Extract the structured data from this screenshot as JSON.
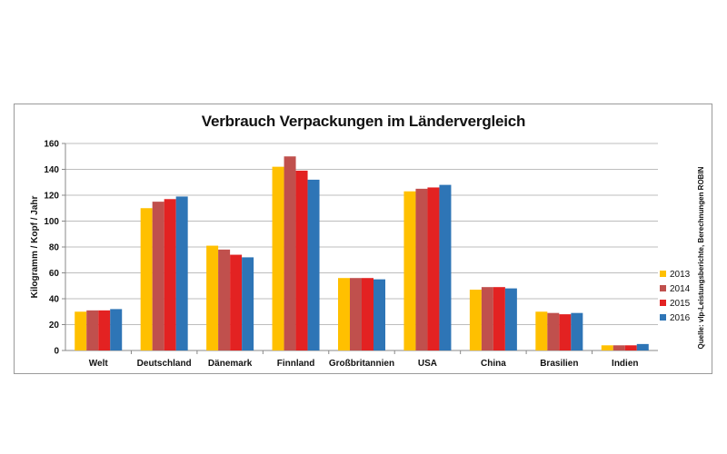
{
  "chart_data": {
    "type": "bar",
    "title": "Verbrauch Verpackungen im Ländervergleich",
    "ylabel": "Kilogramm / Kopf / Jahr",
    "xlabel": "",
    "ylim": [
      0,
      160
    ],
    "yticks": [
      0,
      20,
      40,
      60,
      80,
      100,
      120,
      140,
      160
    ],
    "grid": true,
    "legend_position": "right",
    "source": "Quelle: vlp-Leistungsberichte, Berechnungen ROBIN",
    "categories": [
      "Welt",
      "Deutschland",
      "Dänemark",
      "Finnland",
      "Großbritannien",
      "USA",
      "China",
      "Brasilien",
      "Indien"
    ],
    "series": [
      {
        "name": "2013",
        "color": "#FFC000",
        "values": [
          30,
          110,
          81,
          142,
          56,
          123,
          47,
          30,
          4
        ]
      },
      {
        "name": "2014",
        "color": "#C0504D",
        "values": [
          31,
          115,
          78,
          150,
          56,
          125,
          49,
          29,
          4
        ]
      },
      {
        "name": "2015",
        "color": "#E32222",
        "values": [
          31,
          117,
          74,
          139,
          56,
          126,
          49,
          28,
          4
        ]
      },
      {
        "name": "2016",
        "color": "#2E75B6",
        "values": [
          32,
          119,
          72,
          132,
          55,
          128,
          48,
          29,
          5
        ]
      }
    ]
  }
}
